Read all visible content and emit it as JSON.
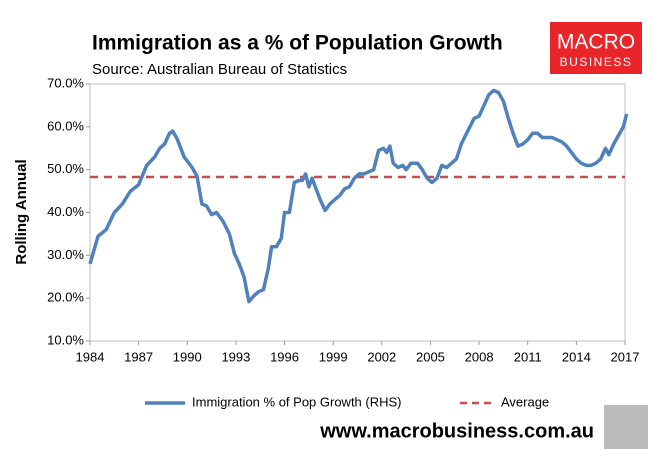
{
  "chart_data": {
    "type": "line",
    "title": "Immigration as a % of Population Growth",
    "subtitle": "Source: Australian Bureau of Statistics",
    "y_label": "Rolling Annual",
    "logo": [
      "MACRO",
      "BUSINESS"
    ],
    "website": "www.macrobusiness.com.au",
    "xlim": [
      1984,
      2017
    ],
    "xticks": [
      1984,
      1987,
      1990,
      1993,
      1996,
      1999,
      2002,
      2005,
      2008,
      2011,
      2014,
      2017
    ],
    "ylim": [
      10,
      70
    ],
    "yticks": [
      {
        "value": 10,
        "label": "10.0%"
      },
      {
        "value": 20,
        "label": "20.0%"
      },
      {
        "value": 30,
        "label": "30.0%"
      },
      {
        "value": 40,
        "label": "40.0%"
      },
      {
        "value": 50,
        "label": "50.0%"
      },
      {
        "value": 60,
        "label": "60.0%"
      },
      {
        "value": 70,
        "label": "70.0%"
      }
    ],
    "series": [
      {
        "name": "Immigration % of Pop Growth (RHS)",
        "color": "#4f81bd",
        "x": [
          1984.0,
          1984.5,
          1985.0,
          1985.5,
          1986.0,
          1986.5,
          1987.0,
          1987.5,
          1988.0,
          1988.3,
          1988.6,
          1988.9,
          1989.1,
          1989.4,
          1989.8,
          1990.3,
          1990.6,
          1990.9,
          1991.2,
          1991.5,
          1991.8,
          1992.2,
          1992.6,
          1992.9,
          1993.2,
          1993.5,
          1993.8,
          1994.1,
          1994.4,
          1994.7,
          1995.0,
          1995.2,
          1995.5,
          1995.8,
          1996.0,
          1996.3,
          1996.6,
          1996.9,
          1997.1,
          1997.3,
          1997.5,
          1997.7,
          1997.9,
          1998.2,
          1998.5,
          1998.8,
          1999.1,
          1999.4,
          1999.7,
          2000.0,
          2000.3,
          2000.6,
          2000.9,
          2001.2,
          2001.5,
          2001.8,
          2002.1,
          2002.3,
          2002.5,
          2002.7,
          2003.0,
          2003.3,
          2003.5,
          2003.8,
          2004.2,
          2004.5,
          2004.8,
          2005.1,
          2005.4,
          2005.7,
          2006.0,
          2006.3,
          2006.6,
          2006.9,
          2007.3,
          2007.7,
          2008.0,
          2008.3,
          2008.6,
          2008.9,
          2009.2,
          2009.5,
          2009.8,
          2010.1,
          2010.4,
          2010.7,
          2011.0,
          2011.3,
          2011.6,
          2011.9,
          2012.2,
          2012.5,
          2012.8,
          2013.1,
          2013.4,
          2013.7,
          2014.0,
          2014.3,
          2014.6,
          2014.9,
          2015.2,
          2015.5,
          2015.8,
          2016.0,
          2016.3,
          2016.6,
          2016.9,
          2017.1
        ],
        "values": [
          28,
          34.5,
          36,
          40,
          42,
          45,
          46.5,
          51,
          53,
          55,
          56,
          58.5,
          59,
          57,
          53,
          50.5,
          48.5,
          42,
          41.5,
          39.5,
          40,
          38,
          35,
          30.5,
          28,
          25,
          19.2,
          20.5,
          21.5,
          22,
          27,
          32,
          32,
          34,
          40,
          40,
          47,
          47.5,
          47.5,
          49,
          46,
          48,
          46,
          43,
          40.5,
          42,
          43,
          44,
          45.5,
          46,
          48,
          49,
          49,
          49.5,
          50,
          54.5,
          55,
          54,
          55.5,
          51.5,
          50.5,
          51,
          50,
          51.5,
          51.5,
          50,
          48,
          47,
          48,
          51,
          50.5,
          51.5,
          52.5,
          56,
          59,
          62,
          62.5,
          65,
          67.5,
          68.5,
          68,
          66,
          62,
          58.5,
          55.5,
          56,
          57,
          58.5,
          58.5,
          57.5,
          57.5,
          57.5,
          57,
          56.5,
          55.5,
          54,
          52.5,
          51.5,
          51,
          51,
          51.5,
          52.5,
          55,
          53.5,
          56,
          58,
          60,
          63
        ]
      }
    ],
    "average": {
      "name": "Average",
      "value": 48.3,
      "color": "#c0504d"
    }
  }
}
